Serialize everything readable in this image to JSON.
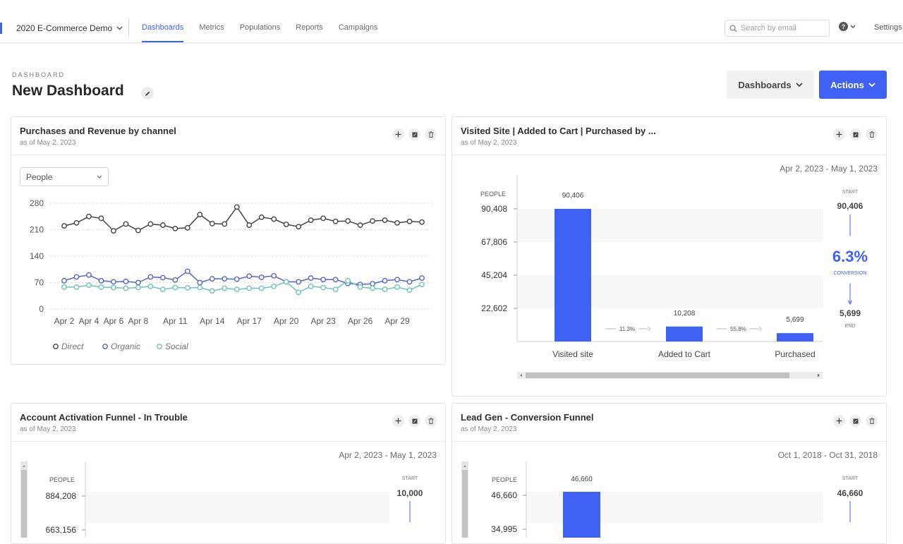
{
  "nav": {
    "project": "2020 E-Commerce Demo",
    "links": [
      {
        "label": "Dashboards",
        "active": true
      },
      {
        "label": "Metrics",
        "active": false
      },
      {
        "label": "Populations",
        "active": false
      },
      {
        "label": "Reports",
        "active": false
      },
      {
        "label": "Campaigns",
        "active": false
      }
    ],
    "search_placeholder": "Search by email",
    "settings": "Settings"
  },
  "header": {
    "eyebrow": "DASHBOARD",
    "title": "New Dashboard",
    "dashboards_button": "Dashboards",
    "actions_button": "Actions"
  },
  "colors": {
    "accent": "#3f62f5",
    "direct": "#444444",
    "organic": "#5566cc",
    "social": "#6cc5b4"
  },
  "cards": {
    "purchases": {
      "title": "Purchases and Revenue by channel",
      "subtitle": "as of May 2, 2023",
      "select_value": "People",
      "chart_data": {
        "type": "line",
        "yticks": [
          0,
          70,
          140,
          210,
          280
        ],
        "ylim": [
          0,
          280
        ],
        "x_tick_labels": [
          "Apr 2",
          "Apr 4",
          "Apr 6",
          "Apr 8",
          "Apr 11",
          "Apr 14",
          "Apr 17",
          "Apr 20",
          "Apr 23",
          "Apr 26",
          "Apr 29"
        ],
        "x_tick_index": [
          0,
          2,
          4,
          6,
          9,
          12,
          15,
          18,
          21,
          24,
          27
        ],
        "grid": true,
        "legend_position": "bottom-left",
        "series": [
          {
            "name": "Direct",
            "color": "#444444",
            "values": [
              220,
              228,
              245,
              240,
              207,
              225,
              208,
              225,
              222,
              213,
              215,
              250,
              226,
              225,
              270,
              222,
              243,
              238,
              224,
              218,
              235,
              240,
              232,
              233,
              222,
              233,
              235,
              228,
              232,
              230
            ]
          },
          {
            "name": "Organic",
            "color": "#5566cc",
            "values": [
              75,
              85,
              90,
              75,
              72,
              73,
              70,
              85,
              83,
              77,
              100,
              70,
              80,
              80,
              79,
              87,
              84,
              88,
              72,
              72,
              82,
              78,
              78,
              68,
              65,
              67,
              75,
              78,
              72,
              82
            ]
          },
          {
            "name": "Social",
            "color": "#6cc5b4",
            "values": [
              58,
              58,
              63,
              58,
              57,
              55,
              57,
              60,
              52,
              57,
              56,
              57,
              48,
              55,
              52,
              55,
              55,
              60,
              72,
              44,
              60,
              57,
              52,
              75,
              58,
              55,
              52,
              58,
              50,
              65
            ]
          }
        ]
      }
    },
    "visited": {
      "title": "Visited Site | Added to Cart | Purchased by ...",
      "subtitle": "as of May 2, 2023",
      "date_range": "Apr 2, 2023 - May 1, 2023",
      "people_label": "PEOPLE",
      "chart_data": {
        "type": "bar",
        "categories": [
          "Visited site",
          "Added to Cart",
          "Purchased"
        ],
        "values": [
          90406,
          10208,
          5699
        ],
        "value_labels": [
          "90,406",
          "10,208",
          "5,699"
        ],
        "yticks": [
          22602,
          45204,
          67806,
          90408
        ],
        "ytick_labels": [
          "22,602",
          "45,204",
          "67,806",
          "90,408"
        ],
        "ylim": [
          0,
          90408
        ],
        "step_rates": [
          "11.3%",
          "55.8%"
        ]
      },
      "summary": {
        "start_label": "START",
        "start_value": "90,406",
        "conversion": "6.3%",
        "conversion_label": "CONVERSION",
        "end_value": "5,699",
        "end_label": "END"
      }
    },
    "account": {
      "title": "Account Activation Funnel - In Trouble",
      "subtitle": "as of May 2, 2023",
      "date_range": "Apr 2, 2023 - May 1, 2023",
      "people_label": "PEOPLE",
      "ytick_labels": [
        "884,208",
        "663,156"
      ],
      "start_label": "START",
      "start_value": "10,000"
    },
    "leadgen": {
      "title": "Lead Gen - Conversion Funnel",
      "subtitle": "as of May 2, 2023",
      "date_range": "Oct 1, 2018 - Oct 31, 2018",
      "people_label": "PEOPLE",
      "ytick_labels": [
        "46,660",
        "34,995"
      ],
      "bar_value": 46660,
      "bar_label": "46,660",
      "start_label": "START",
      "start_value": "46,660"
    }
  }
}
